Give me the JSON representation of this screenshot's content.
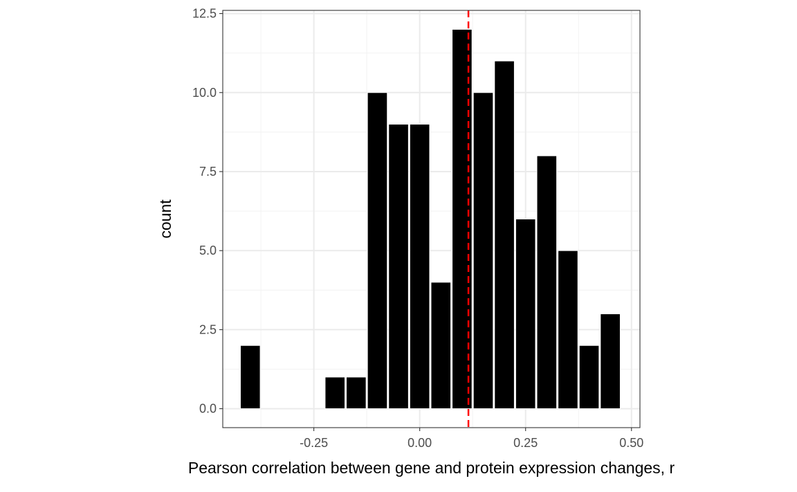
{
  "chart_data": {
    "type": "bar",
    "xlabel": "Pearson correlation between gene and protein expression changes, r",
    "ylabel": "count",
    "xlim": [
      -0.465,
      0.52
    ],
    "ylim": [
      -0.6,
      12.6
    ],
    "x_ticks": [
      -0.25,
      0.0,
      0.25,
      0.5
    ],
    "x_tick_labels": [
      "-0.25",
      "0.00",
      "0.25",
      "0.50"
    ],
    "y_ticks": [
      0,
      2.5,
      5,
      7.5,
      10,
      12.5
    ],
    "y_tick_labels": [
      "0.0",
      "2.5",
      "5.0",
      "7.5",
      "10.0",
      "12.5"
    ],
    "bin_width": 0.05,
    "bin_centers": [
      -0.4,
      -0.35,
      -0.3,
      -0.25,
      -0.2,
      -0.15,
      -0.1,
      -0.05,
      0.0,
      0.05,
      0.1,
      0.15,
      0.2,
      0.25,
      0.3,
      0.35,
      0.4,
      0.45
    ],
    "values": [
      2,
      0,
      0,
      0,
      1,
      1,
      10,
      9,
      9,
      4,
      12,
      10,
      11,
      6,
      8,
      5,
      2,
      3
    ],
    "reference_line": {
      "x": 0.115,
      "style": "dashed",
      "color": "#ff0000"
    },
    "bar_color": "#000000",
    "grid": true,
    "theme": "bw"
  }
}
